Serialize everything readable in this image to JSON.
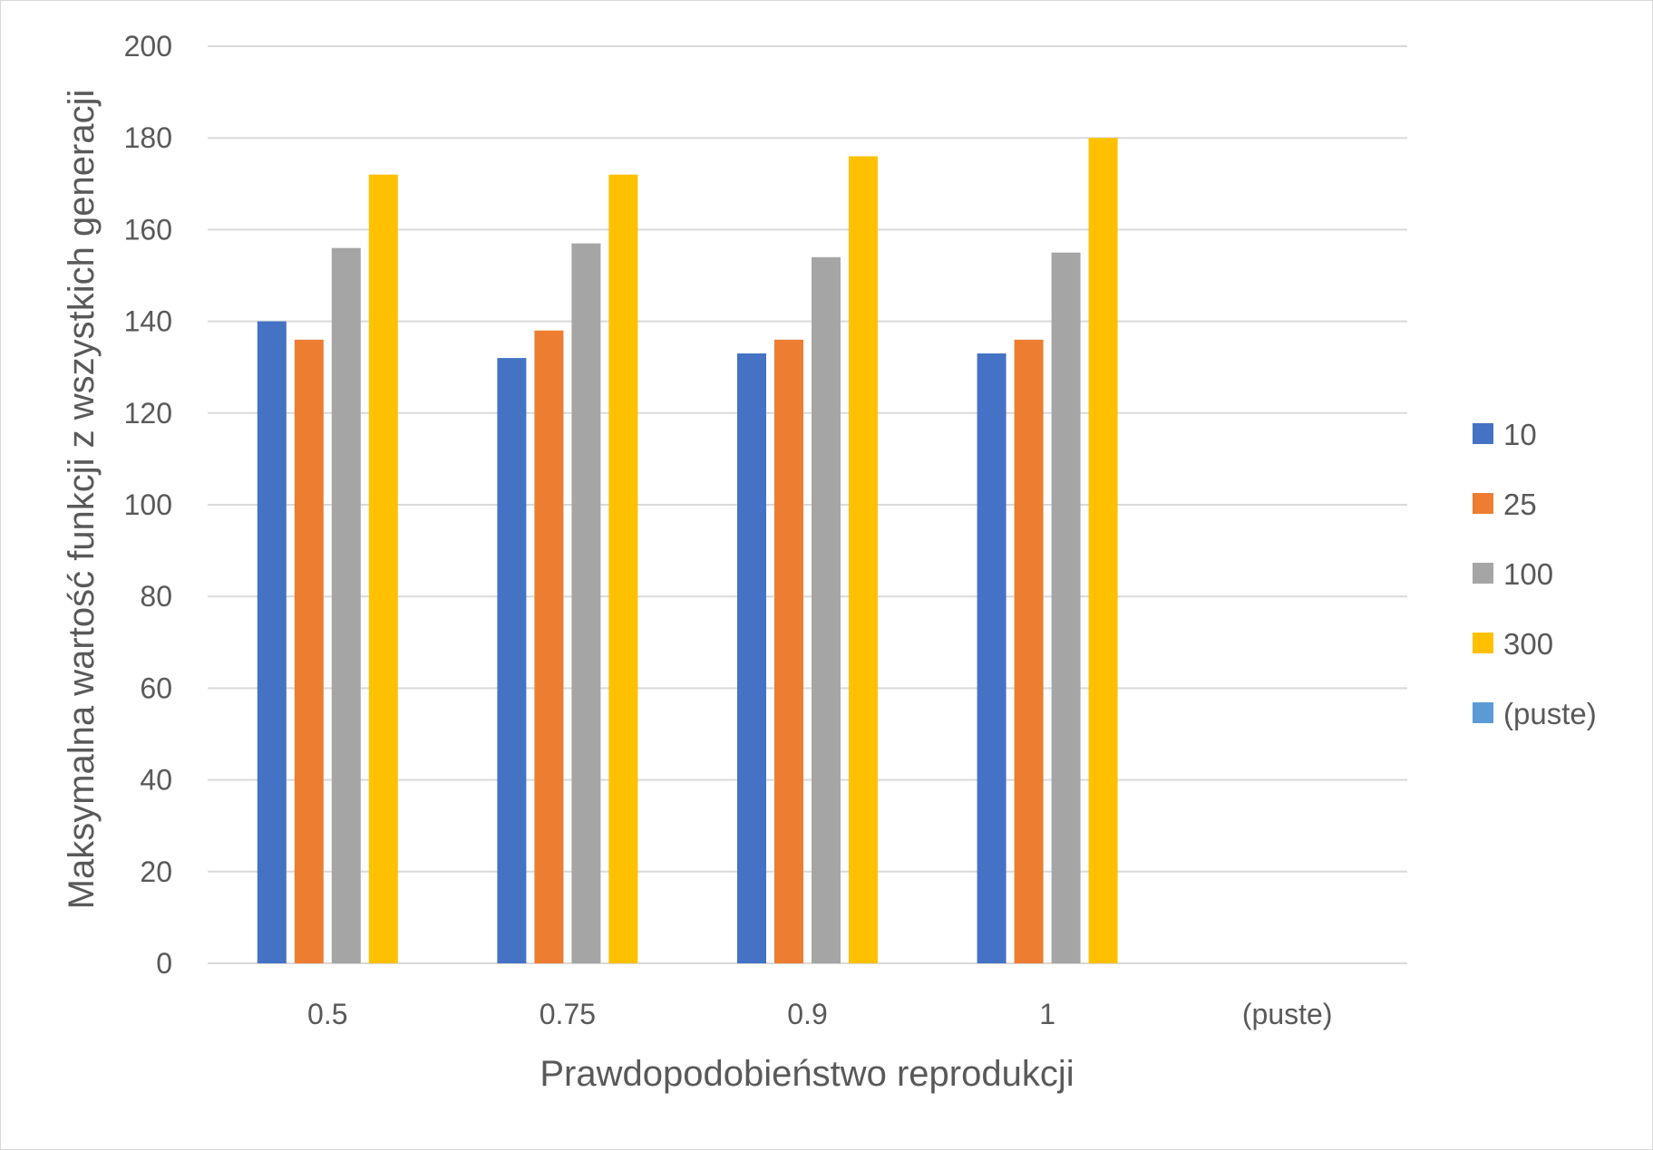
{
  "chart_data": {
    "type": "bar",
    "title": "",
    "xlabel": "Prawdopodobieństwo reprodukcji",
    "ylabel": "Maksymalna wartość funkcji z wszystkich generacji",
    "categories": [
      "0.5",
      "0.75",
      "0.9",
      "1",
      "(puste)"
    ],
    "ylim": [
      0,
      200
    ],
    "yticks": [
      "0",
      "20",
      "40",
      "60",
      "80",
      "100",
      "120",
      "140",
      "160",
      "180",
      "200"
    ],
    "grid": true,
    "legend_position": "right",
    "series": [
      {
        "name": "10",
        "color": "#4472C4",
        "values": [
          140,
          132,
          133,
          133,
          null
        ]
      },
      {
        "name": "25",
        "color": "#ED7D31",
        "values": [
          136,
          138,
          136,
          136,
          null
        ]
      },
      {
        "name": "100",
        "color": "#A5A5A5",
        "values": [
          156,
          157,
          154,
          155,
          null
        ]
      },
      {
        "name": "300",
        "color": "#FFC000",
        "values": [
          172,
          172,
          176,
          180,
          null
        ]
      },
      {
        "name": "(puste)",
        "color": "#5B9BD5",
        "values": [
          null,
          null,
          null,
          null,
          null
        ]
      }
    ]
  }
}
